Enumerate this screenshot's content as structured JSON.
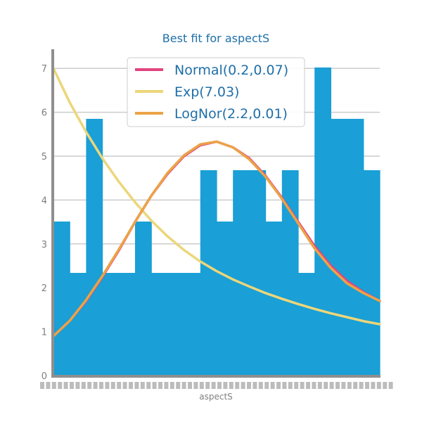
{
  "chart_data": {
    "type": "bar",
    "title": "Best fit for aspectS",
    "xlabel": "aspectS",
    "ylabel": "",
    "ylim": [
      0,
      7.5
    ],
    "yticks": [
      0,
      1,
      2,
      3,
      4,
      5,
      6,
      7
    ],
    "grid": "horizontal",
    "legend_position": "top-center",
    "histogram": {
      "name": "aspectS",
      "color": "#1a9fd6",
      "values": [
        3.51,
        2.34,
        5.85,
        2.34,
        2.34,
        3.51,
        2.34,
        2.34,
        2.34,
        4.68,
        3.51,
        4.68,
        4.68,
        3.51,
        4.68,
        2.34,
        7.02,
        5.85,
        5.85,
        4.68
      ]
    },
    "series": [
      {
        "name": "Normal(0.2,0.07)",
        "type": "line",
        "color": "#e2447f",
        "x_fraction": [
          0,
          0.05,
          0.1,
          0.15,
          0.2,
          0.25,
          0.3,
          0.35,
          0.4,
          0.45,
          0.5,
          0.55,
          0.6,
          0.65,
          0.7,
          0.75,
          0.8,
          0.85,
          0.9,
          0.95,
          1.0
        ],
        "values": [
          0.9,
          1.25,
          1.7,
          2.25,
          2.85,
          3.5,
          4.1,
          4.6,
          5.0,
          5.25,
          5.33,
          5.2,
          4.95,
          4.55,
          4.05,
          3.5,
          2.95,
          2.5,
          2.15,
          1.9,
          1.7
        ]
      },
      {
        "name": "Exp(7.03)",
        "type": "line",
        "color": "#ecd67a",
        "x_fraction": [
          0,
          0.05,
          0.1,
          0.15,
          0.2,
          0.25,
          0.3,
          0.35,
          0.4,
          0.45,
          0.5,
          0.55,
          0.6,
          0.65,
          0.7,
          0.75,
          0.8,
          0.85,
          0.9,
          0.95,
          1.0
        ],
        "values": [
          7.0,
          6.22,
          5.55,
          4.95,
          4.42,
          3.95,
          3.53,
          3.17,
          2.86,
          2.6,
          2.38,
          2.19,
          2.03,
          1.88,
          1.75,
          1.63,
          1.52,
          1.42,
          1.33,
          1.24,
          1.17
        ]
      },
      {
        "name": "LogNor(2.2,0.01)",
        "type": "line",
        "color": "#eba347",
        "x_fraction": [
          0,
          0.05,
          0.1,
          0.15,
          0.2,
          0.25,
          0.3,
          0.35,
          0.4,
          0.45,
          0.5,
          0.55,
          0.6,
          0.65,
          0.7,
          0.75,
          0.8,
          0.85,
          0.9,
          0.95,
          1.0
        ],
        "values": [
          0.9,
          1.25,
          1.72,
          2.27,
          2.87,
          3.5,
          4.1,
          4.62,
          5.02,
          5.27,
          5.33,
          5.2,
          4.93,
          4.53,
          4.03,
          3.47,
          2.9,
          2.45,
          2.1,
          1.88,
          1.7
        ]
      }
    ]
  }
}
